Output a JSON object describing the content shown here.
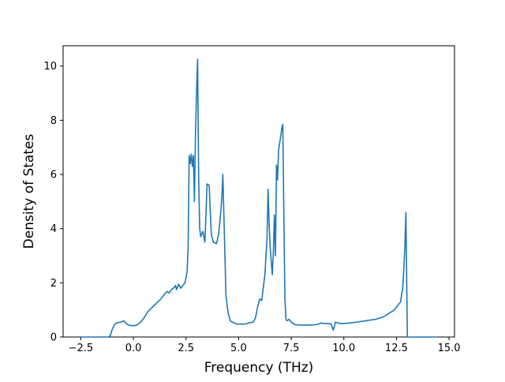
{
  "chart_data": {
    "type": "line",
    "title": "",
    "xlabel": "Frequency (THz)",
    "ylabel": "Density of States",
    "xlim": [
      -3.34,
      15.26
    ],
    "ylim": [
      0,
      10.75
    ],
    "x_ticks": [
      -2.5,
      0.0,
      2.5,
      5.0,
      7.5,
      10.0,
      12.5,
      15.0
    ],
    "x_tick_labels": [
      "−2.5",
      "0.0",
      "2.5",
      "5.0",
      "7.5",
      "10.0",
      "12.5",
      "15.0"
    ],
    "y_ticks": [
      0,
      2,
      4,
      6,
      8,
      10
    ],
    "y_tick_labels": [
      "0",
      "2",
      "4",
      "6",
      "8",
      "10"
    ],
    "grid": false,
    "legend": "none",
    "line_color": "#1f77b4",
    "series": [
      {
        "x": [
          -2.5,
          -1.2,
          -1.1,
          -1.0,
          -0.9,
          -0.8,
          -0.6,
          -0.45,
          -0.35,
          -0.25,
          -0.1,
          0.1,
          0.2,
          0.35,
          0.5,
          0.7,
          0.9,
          1.1,
          1.3,
          1.5,
          1.6,
          1.7,
          1.8,
          1.9,
          2.0,
          2.05,
          2.15,
          2.25,
          2.35,
          2.45,
          2.55,
          2.6,
          2.65,
          2.7,
          2.75,
          2.8,
          2.85,
          2.9,
          2.95,
          3.0,
          3.05,
          3.1,
          3.15,
          3.2,
          3.3,
          3.4,
          3.5,
          3.6,
          3.7,
          3.8,
          3.95,
          4.05,
          4.15,
          4.2,
          4.25,
          4.3,
          4.4,
          4.5,
          4.6,
          4.7,
          4.9,
          5.1,
          5.3,
          5.5,
          5.7,
          5.8,
          5.9,
          6.0,
          6.1,
          6.2,
          6.25,
          6.3,
          6.35,
          6.4,
          6.45,
          6.5,
          6.6,
          6.65,
          6.7,
          6.75,
          6.8,
          6.85,
          6.9,
          7.0,
          7.05,
          7.1,
          7.15,
          7.2,
          7.25,
          7.3,
          7.4,
          7.5,
          7.7,
          8.0,
          8.3,
          8.6,
          8.8,
          8.9,
          9.0,
          9.2,
          9.4,
          9.5,
          9.6,
          9.8,
          10.0,
          10.3,
          10.6,
          10.9,
          11.2,
          11.5,
          11.7,
          11.9,
          12.0,
          12.1,
          12.2,
          12.3,
          12.4,
          12.5,
          12.6,
          12.7,
          12.75,
          12.8,
          12.85,
          12.9,
          12.95,
          12.99,
          13.02,
          13.1,
          13.5,
          14.0,
          14.4
        ],
        "y": [
          0,
          0,
          0.05,
          0.3,
          0.45,
          0.52,
          0.55,
          0.6,
          0.5,
          0.45,
          0.42,
          0.42,
          0.46,
          0.55,
          0.7,
          0.95,
          1.1,
          1.25,
          1.4,
          1.6,
          1.68,
          1.62,
          1.75,
          1.8,
          1.9,
          1.75,
          1.95,
          1.8,
          1.9,
          2.0,
          2.4,
          3.3,
          6.7,
          6.4,
          6.75,
          6.3,
          6.7,
          5.0,
          7.5,
          9.0,
          10.25,
          6.0,
          4.0,
          3.7,
          3.9,
          3.5,
          5.65,
          5.6,
          3.8,
          3.5,
          3.45,
          3.8,
          4.6,
          5.1,
          6.0,
          4.5,
          1.5,
          0.9,
          0.6,
          0.55,
          0.48,
          0.48,
          0.48,
          0.52,
          0.55,
          0.7,
          1.1,
          1.4,
          1.35,
          2.0,
          2.3,
          3.0,
          3.6,
          5.45,
          4.2,
          3.3,
          2.3,
          3.1,
          4.5,
          3.0,
          6.35,
          5.8,
          6.9,
          7.4,
          7.7,
          7.85,
          4.5,
          1.4,
          0.65,
          0.6,
          0.65,
          0.55,
          0.45,
          0.44,
          0.44,
          0.45,
          0.48,
          0.52,
          0.5,
          0.5,
          0.48,
          0.25,
          0.55,
          0.5,
          0.5,
          0.52,
          0.55,
          0.58,
          0.62,
          0.65,
          0.7,
          0.75,
          0.8,
          0.85,
          0.9,
          0.95,
          1.0,
          1.1,
          1.2,
          1.3,
          1.6,
          1.8,
          2.5,
          3.3,
          4.6,
          2.0,
          0.0,
          0,
          0,
          0,
          0
        ]
      }
    ]
  }
}
